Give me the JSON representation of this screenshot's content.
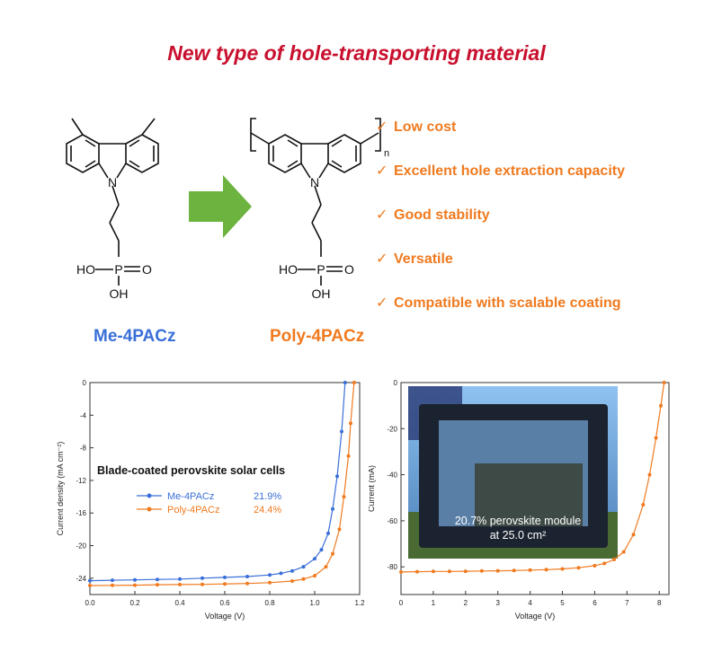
{
  "title": "New type of hole-transporting material",
  "molecules": {
    "left_name": "Me-4PACz",
    "right_name": "Poly-4PACz",
    "atoms": {
      "N": "N",
      "P": "P",
      "O": "O",
      "HO": "HO",
      "OH": "OH",
      "n": "n"
    }
  },
  "features": [
    "Low cost",
    "Excellent hole extraction capacity",
    "Good stability",
    "Versatile",
    "Compatible with scalable coating"
  ],
  "check_mark": "✓",
  "colors": {
    "title": "#c8102e",
    "blue": "#3a6fd8",
    "orange": "#f07a1f",
    "arrow": "#6db33f"
  },
  "chart_data": [
    {
      "type": "line",
      "annotation": "Blade-coated perovskite solar cells",
      "xlabel": "Voltage (V)",
      "ylabel": "Current density (mA cm⁻²)",
      "xlim": [
        0,
        1.2
      ],
      "ylim": [
        -26,
        0
      ],
      "xticks": [
        "0.0",
        "0.2",
        "0.4",
        "0.6",
        "0.8",
        "1.0",
        "1.2"
      ],
      "yticks": [
        "0",
        "-4",
        "-8",
        "-12",
        "-16",
        "-20",
        "-24"
      ],
      "legend_position": "left",
      "series": [
        {
          "name": "Me-4PACz",
          "value_label": "21.9%",
          "color": "#3a6fd8",
          "x": [
            0.0,
            0.1,
            0.2,
            0.3,
            0.4,
            0.5,
            0.6,
            0.7,
            0.8,
            0.85,
            0.9,
            0.95,
            1.0,
            1.03,
            1.06,
            1.08,
            1.1,
            1.12,
            1.135
          ],
          "y": [
            -24.3,
            -24.25,
            -24.2,
            -24.15,
            -24.1,
            -24.0,
            -23.9,
            -23.8,
            -23.6,
            -23.4,
            -23.1,
            -22.6,
            -21.6,
            -20.5,
            -18.5,
            -15.5,
            -11.5,
            -6.0,
            0
          ]
        },
        {
          "name": "Poly-4PACz",
          "value_label": "24.4%",
          "color": "#f07a1f",
          "x": [
            0.0,
            0.1,
            0.2,
            0.3,
            0.4,
            0.5,
            0.6,
            0.7,
            0.8,
            0.9,
            0.95,
            1.0,
            1.05,
            1.08,
            1.11,
            1.13,
            1.15,
            1.16,
            1.175
          ],
          "y": [
            -24.9,
            -24.88,
            -24.85,
            -24.8,
            -24.78,
            -24.75,
            -24.7,
            -24.65,
            -24.55,
            -24.35,
            -24.1,
            -23.7,
            -22.6,
            -21.0,
            -18.0,
            -14.0,
            -9.0,
            -5.0,
            0
          ]
        }
      ]
    },
    {
      "type": "line",
      "annotation": "20.7% perovskite module at 25.0 cm²",
      "annotation_lines": [
        "20.7% perovskite module",
        "at 25.0 cm²"
      ],
      "xlabel": "Voltage (V)",
      "ylabel": "Current (mA)",
      "xlim": [
        0,
        8.3
      ],
      "ylim": [
        -92,
        0
      ],
      "xticks": [
        "0",
        "1",
        "2",
        "3",
        "4",
        "5",
        "6",
        "7",
        "8"
      ],
      "yticks": [
        "0",
        "-20",
        "-40",
        "-60",
        "-80"
      ],
      "series": [
        {
          "name": "",
          "color": "#f07a1f",
          "x": [
            0,
            0.5,
            1,
            1.5,
            2,
            2.5,
            3,
            3.5,
            4,
            4.5,
            5,
            5.5,
            6,
            6.3,
            6.6,
            6.9,
            7.2,
            7.5,
            7.7,
            7.9,
            8.05,
            8.15
          ],
          "y": [
            -82.2,
            -82.1,
            -82.0,
            -82.0,
            -81.9,
            -81.8,
            -81.7,
            -81.6,
            -81.4,
            -81.2,
            -80.9,
            -80.4,
            -79.5,
            -78.5,
            -76.8,
            -73.5,
            -66.0,
            -53.0,
            -40.0,
            -24.0,
            -10.0,
            0
          ]
        }
      ]
    }
  ]
}
